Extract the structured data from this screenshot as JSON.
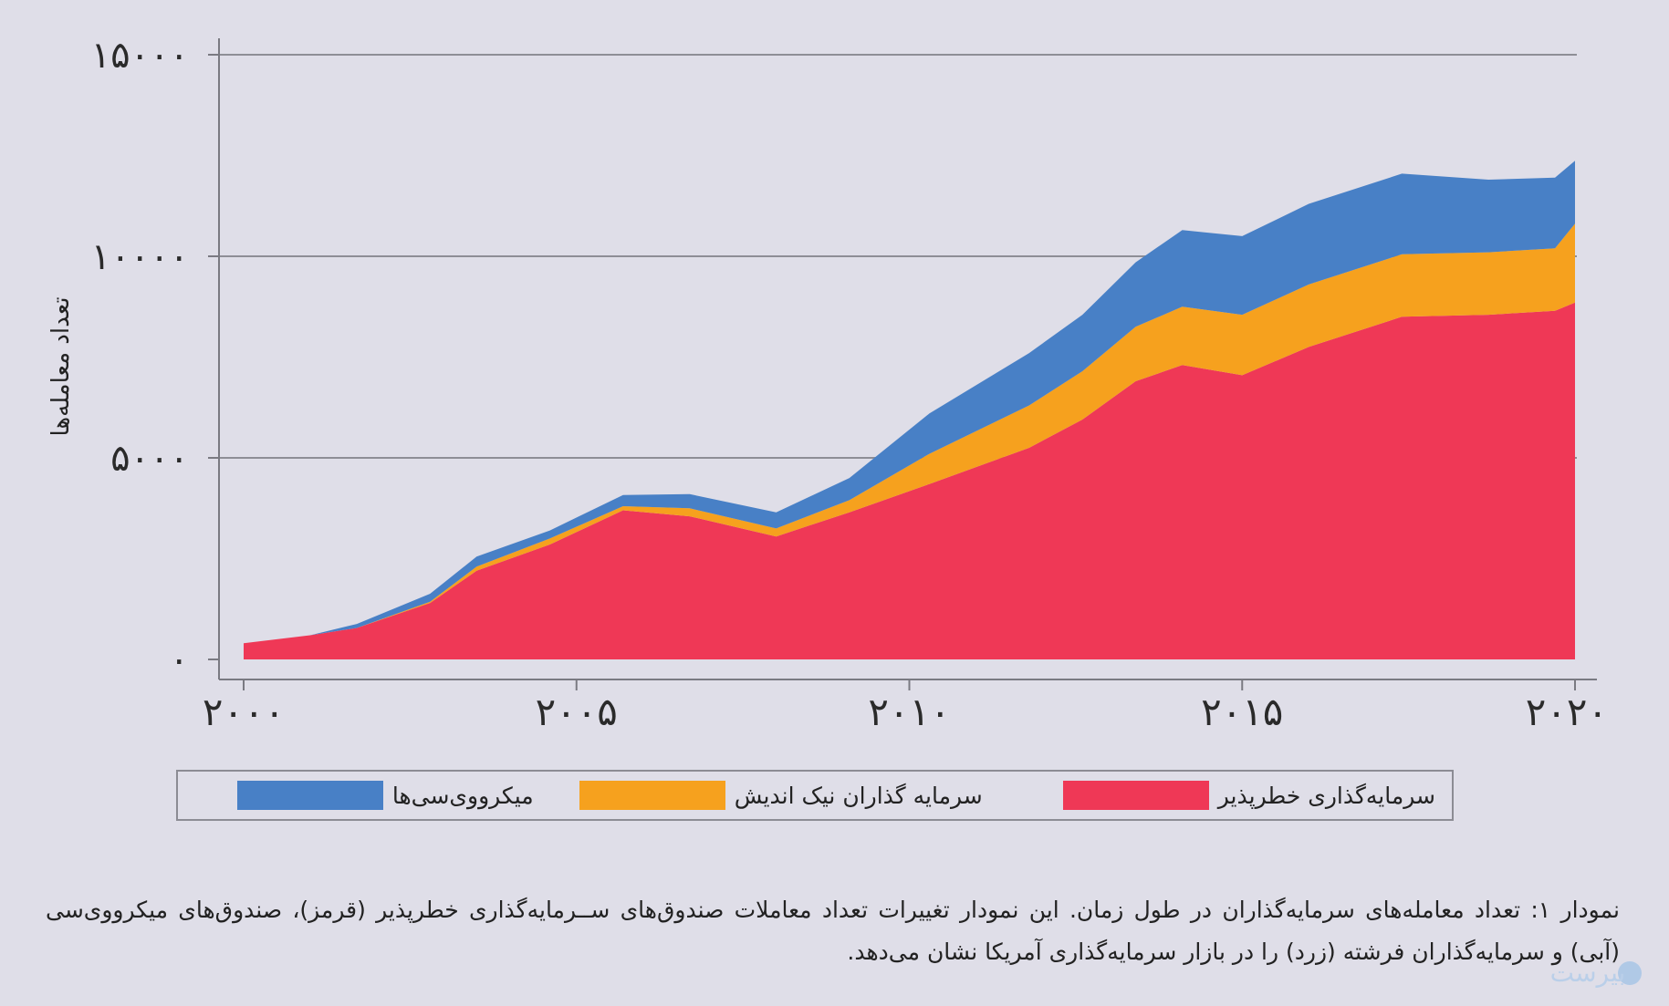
{
  "chart_data": {
    "type": "area",
    "stacked": true,
    "x": [
      2000,
      2001,
      2001.7,
      2002.8,
      2003.5,
      2004.6,
      2005.7,
      2006.7,
      2008,
      2009.1,
      2010.3,
      2011.8,
      2012.6,
      2013.4,
      2014.1,
      2015,
      2016,
      2017.4,
      2018.7,
      2019.7,
      2020
    ],
    "series": [
      {
        "name": "سرمایه‌گذاری خطرپذیر",
        "color": "#ef3856",
        "values": [
          400,
          600,
          780,
          1400,
          2200,
          2850,
          3700,
          3550,
          3050,
          3650,
          4350,
          5250,
          5950,
          6900,
          7300,
          7050,
          7750,
          8500,
          8550,
          8650,
          8850
        ]
      },
      {
        "name": "سرمایه گذاران نیک اندیش",
        "color": "#f6a11e",
        "values": [
          0,
          0,
          0,
          30,
          100,
          150,
          100,
          200,
          200,
          300,
          750,
          1050,
          1200,
          1350,
          1450,
          1500,
          1550,
          1550,
          1550,
          1550,
          1960
        ]
      },
      {
        "name": "میکرو‌وی‌سی‌ها",
        "color": "#4880c6",
        "values": [
          0,
          0,
          100,
          200,
          250,
          200,
          280,
          350,
          400,
          550,
          1000,
          1300,
          1400,
          1600,
          1900,
          1950,
          2000,
          2000,
          1800,
          1750,
          1560
        ]
      }
    ],
    "ylim": [
      0,
      15000
    ],
    "xlim": [
      2000,
      2020
    ],
    "y_ticks": [
      "۰",
      "۵۰۰۰",
      "۱۰۰۰۰",
      "۱۵۰۰۰"
    ],
    "y_tick_values": [
      0,
      5000,
      10000,
      15000
    ],
    "x_ticks": [
      "۲۰۰۰",
      "۲۰۰۵",
      "۲۰۱۰",
      "۲۰۱۵",
      "۲۰۲۰"
    ],
    "x_tick_values": [
      2000,
      2005,
      2010,
      2015,
      2020
    ],
    "xlabel": "",
    "ylabel": "تعداد معامله‌ها",
    "title": "",
    "grid": true,
    "legend": "bottom"
  },
  "legend": {
    "items": [
      {
        "label": "سرمایه‌گذاری خطرپذیر",
        "color": "#ef3856"
      },
      {
        "label": "سرمایه گذاران نیک اندیش",
        "color": "#f6a11e"
      },
      {
        "label": "میکرو‌وی‌سی‌ها",
        "color": "#4880c6"
      }
    ]
  },
  "caption": {
    "text": "نمودار ۱: تعداد معامله‌های سرمایه‌گذاران در طول زمان. این نمودار تغییرات تعداد معاملات صندوق‌های ســرمایه‌گذاری خطرپذیر (قرمز)، صندوق‌های میکرو‌وی‌سی (آبی) و سرمایه‌گذاران فرشته (زرد) را در بازار سرمایه‌گذاری آمریکا نشان می‌دهد."
  },
  "watermark": {
    "text": "بیرست"
  }
}
